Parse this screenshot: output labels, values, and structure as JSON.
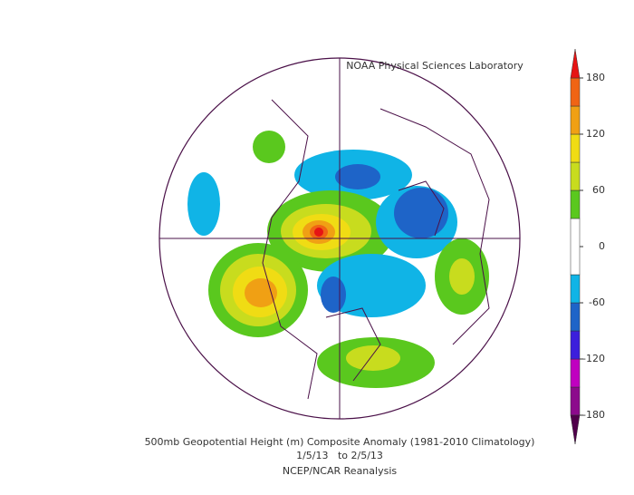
{
  "header": {
    "credit": "NOAA Physical Sciences Laboratory"
  },
  "footer": {
    "title": "500mb Geopotential Height (m) Composite Anomaly (1981-2010 Climatology)",
    "dates": "1/5/13   to 2/5/13",
    "source": "NCEP/NCAR Reanalysis"
  },
  "colorbar": {
    "lim": [
      -180,
      180
    ],
    "ticks": [
      180,
      120,
      60,
      0,
      -60,
      -120,
      -180
    ],
    "bounds": [
      -180,
      -150,
      -120,
      -90,
      -60,
      -30,
      30,
      60,
      90,
      120,
      150,
      180
    ],
    "colors": [
      "#8c0a8c",
      "#c000c0",
      "#3c1edc",
      "#1e64c8",
      "#10b4e6",
      "#ffffff",
      "#5ac81e",
      "#c8dc1e",
      "#f0dc14",
      "#f0a014",
      "#f06414"
    ],
    "under_color": "#50004b",
    "over_color": "#e61414"
  }
}
